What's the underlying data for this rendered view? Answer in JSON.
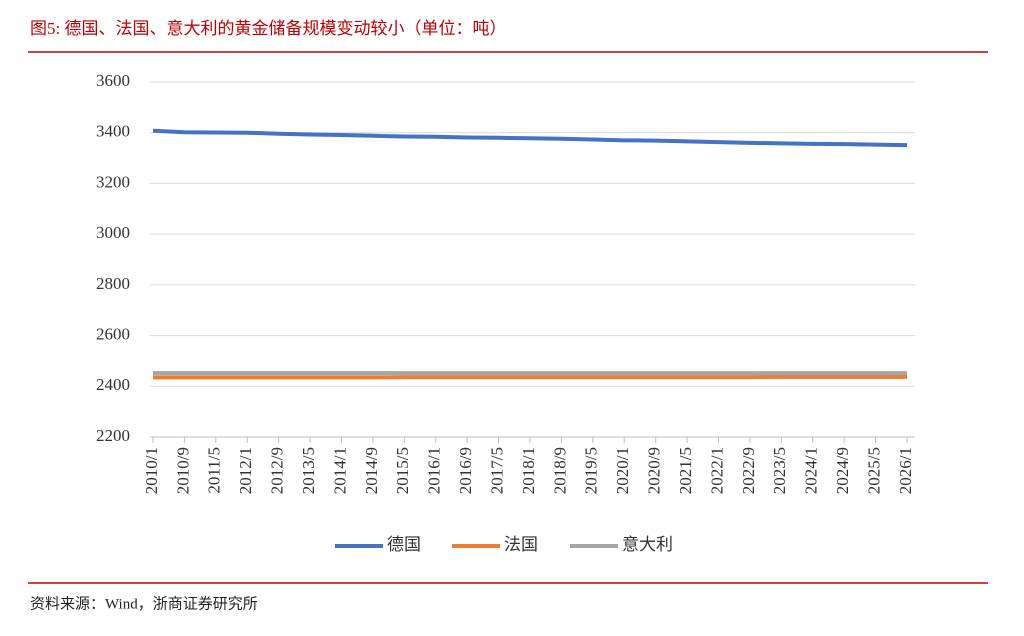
{
  "chart_data": {
    "type": "line",
    "title": "图5:  德国、法国、意大利的黄金储备规模变动较小（单位：吨）",
    "source": "资料来源：Wind，浙商证券研究所",
    "categories": [
      "2010/1",
      "2010/9",
      "2011/5",
      "2012/1",
      "2012/9",
      "2013/5",
      "2014/1",
      "2014/9",
      "2015/5",
      "2016/1",
      "2016/9",
      "2017/5",
      "2018/1",
      "2018/9",
      "2019/5",
      "2020/1",
      "2020/9",
      "2021/5",
      "2022/1",
      "2022/9",
      "2023/5",
      "2024/1",
      "2024/9",
      "2025/5",
      "2026/1"
    ],
    "series": [
      {
        "name": "德国",
        "color": "#4472c4",
        "values": [
          3408,
          3402,
          3401,
          3400,
          3396,
          3393,
          3391,
          3388,
          3385,
          3384,
          3381,
          3380,
          3378,
          3376,
          3373,
          3370,
          3369,
          3366,
          3363,
          3360,
          3358,
          3356,
          3355,
          3353,
          3351
        ]
      },
      {
        "name": "法国",
        "color": "#ed7d31",
        "values": [
          2435,
          2435,
          2435,
          2435,
          2435,
          2435,
          2435,
          2435,
          2436,
          2436,
          2436,
          2436,
          2436,
          2436,
          2436,
          2436,
          2436,
          2436,
          2436,
          2436,
          2437,
          2437,
          2437,
          2437,
          2437
        ]
      },
      {
        "name": "意大利",
        "color": "#a5a5a5",
        "values": [
          2452,
          2452,
          2452,
          2452,
          2452,
          2452,
          2452,
          2452,
          2452,
          2452,
          2452,
          2452,
          2452,
          2452,
          2452,
          2452,
          2452,
          2452,
          2452,
          2452,
          2452,
          2452,
          2452,
          2452,
          2452
        ]
      }
    ],
    "ylim": [
      2200,
      3600
    ],
    "yticks": [
      2200,
      2400,
      2600,
      2800,
      3000,
      3200,
      3400,
      3600
    ],
    "grid": true,
    "legend": "bottom"
  }
}
